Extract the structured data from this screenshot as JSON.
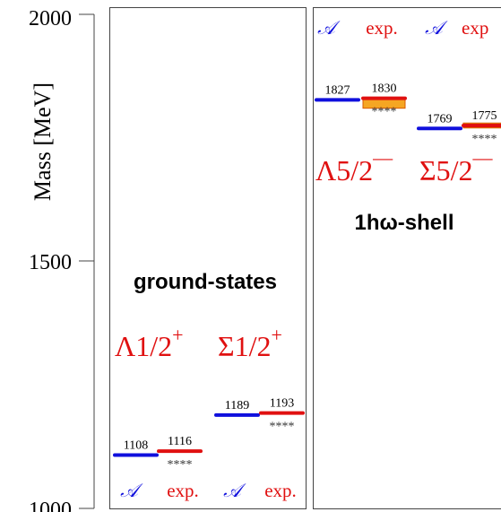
{
  "chart_data": {
    "type": "level-diagram",
    "ylabel": "Mass [MeV]",
    "ylim": [
      1000,
      2000
    ],
    "yticks": [
      "1000",
      "1500",
      "2000"
    ],
    "colors": {
      "theory": "#1010dd",
      "experiment": "#e01010",
      "band_fill": "#f5a623",
      "band_edge": "#d85a00",
      "frame": "#444444",
      "text": "#000000"
    },
    "panels": [
      {
        "title": "ground-states",
        "columns": [
          {
            "name": "A",
            "kind": "theory",
            "mass": 1108,
            "label": "1108",
            "stars": ""
          },
          {
            "name": "exp.",
            "kind": "experiment",
            "mass": 1116,
            "label": "1116",
            "stars": "****"
          },
          {
            "name": "A",
            "kind": "theory",
            "mass": 1189,
            "label": "1189",
            "stars": ""
          },
          {
            "name": "exp.",
            "kind": "experiment",
            "mass": 1193,
            "label": "1193",
            "stars": "****"
          }
        ],
        "groups": [
          {
            "label_main": "Λ1/2",
            "label_sup": "+"
          },
          {
            "label_main": "Σ1/2",
            "label_sup": "+"
          }
        ],
        "header_symbols": [
          "𝒜",
          "exp.",
          "𝒜",
          "exp."
        ]
      },
      {
        "title": "1hω-shell",
        "columns": [
          {
            "name": "A",
            "kind": "theory",
            "mass": 1827,
            "label": "1827",
            "stars": ""
          },
          {
            "name": "exp.",
            "kind": "experiment",
            "mass": 1830,
            "label": "1830",
            "stars": "****",
            "band": [
              1810,
              1830
            ]
          },
          {
            "name": "A",
            "kind": "theory",
            "mass": 1769,
            "label": "1769",
            "stars": ""
          },
          {
            "name": "exp.",
            "kind": "experiment",
            "mass": 1775,
            "label": "1775",
            "stars": "****",
            "band": [
              1770,
              1780
            ]
          }
        ],
        "groups": [
          {
            "label_main": "Λ5/2",
            "label_sup": "—"
          },
          {
            "label_main": "Σ5/2",
            "label_sup": "—"
          }
        ],
        "header_symbols": [
          "𝒜",
          "exp.",
          "𝒜",
          "exp"
        ]
      }
    ]
  }
}
